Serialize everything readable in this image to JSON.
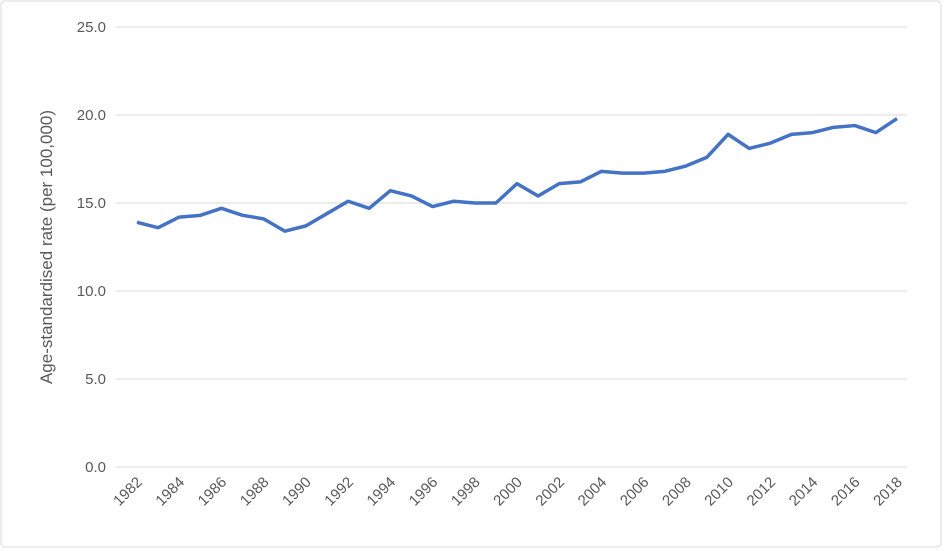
{
  "chart_data": {
    "type": "line",
    "y_label": "Age-standardised rate (per 100,000)",
    "x": [
      1982,
      1983,
      1984,
      1985,
      1986,
      1987,
      1988,
      1989,
      1990,
      1991,
      1992,
      1993,
      1994,
      1995,
      1996,
      1997,
      1998,
      1999,
      2000,
      2001,
      2002,
      2003,
      2004,
      2005,
      2006,
      2007,
      2008,
      2009,
      2010,
      2011,
      2012,
      2013,
      2014,
      2015,
      2016,
      2017,
      2018
    ],
    "values": [
      13.9,
      13.6,
      14.2,
      14.3,
      14.7,
      14.3,
      14.1,
      13.4,
      13.7,
      14.4,
      15.1,
      14.7,
      15.7,
      15.4,
      14.8,
      15.1,
      15.0,
      15.0,
      16.1,
      15.4,
      16.1,
      16.2,
      16.8,
      16.7,
      16.7,
      16.8,
      17.1,
      17.6,
      18.9,
      18.1,
      18.4,
      18.9,
      19.0,
      19.3,
      19.4,
      19.0,
      19.8
    ],
    "color": "#4472c4",
    "xlim": [
      1982,
      2018
    ],
    "xticks": [
      1982,
      1984,
      1986,
      1988,
      1990,
      1992,
      1994,
      1996,
      1998,
      2000,
      2002,
      2004,
      2006,
      2008,
      2010,
      2012,
      2014,
      2016,
      2018
    ],
    "ylim": [
      0,
      25
    ],
    "yticks": [
      {
        "value": 0,
        "label": "0.0"
      },
      {
        "value": 5,
        "label": "5.0"
      },
      {
        "value": 10,
        "label": "10.0"
      },
      {
        "value": 15,
        "label": "15.0"
      },
      {
        "value": 20,
        "label": "20.0"
      },
      {
        "value": 25,
        "label": "25.0"
      }
    ],
    "grid": true
  }
}
